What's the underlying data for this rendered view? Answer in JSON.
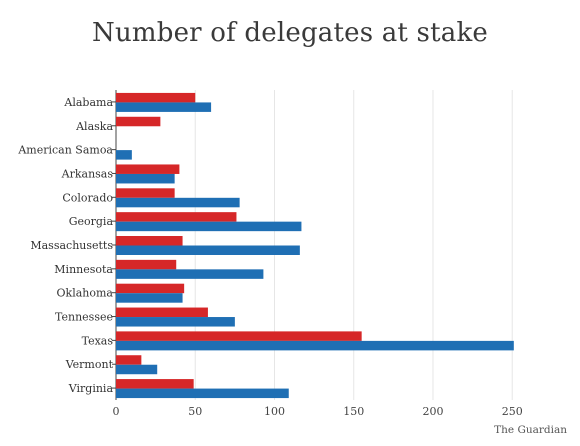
{
  "chart_data": {
    "type": "bar",
    "orientation": "horizontal",
    "title": "Number of delegates at stake",
    "source": "The Guardian",
    "categories": [
      "Alabama",
      "Alaska",
      "American Samoa",
      "Arkansas",
      "Colorado",
      "Georgia",
      "Massachusetts",
      "Minnesota",
      "Oklahoma",
      "Tennessee",
      "Texas",
      "Vermont",
      "Virginia"
    ],
    "series": [
      {
        "color": "#d62728",
        "values": [
          50,
          28,
          0,
          40,
          37,
          76,
          42,
          38,
          43,
          58,
          155,
          16,
          49
        ]
      },
      {
        "color": "#1f6fb4",
        "values": [
          60,
          0,
          10,
          37,
          78,
          117,
          116,
          93,
          42,
          75,
          251,
          26,
          109
        ]
      }
    ],
    "xlim": [
      0,
      265
    ],
    "xticks": [
      0,
      50,
      100,
      150,
      200,
      250
    ],
    "grid": true,
    "legend": "none"
  }
}
